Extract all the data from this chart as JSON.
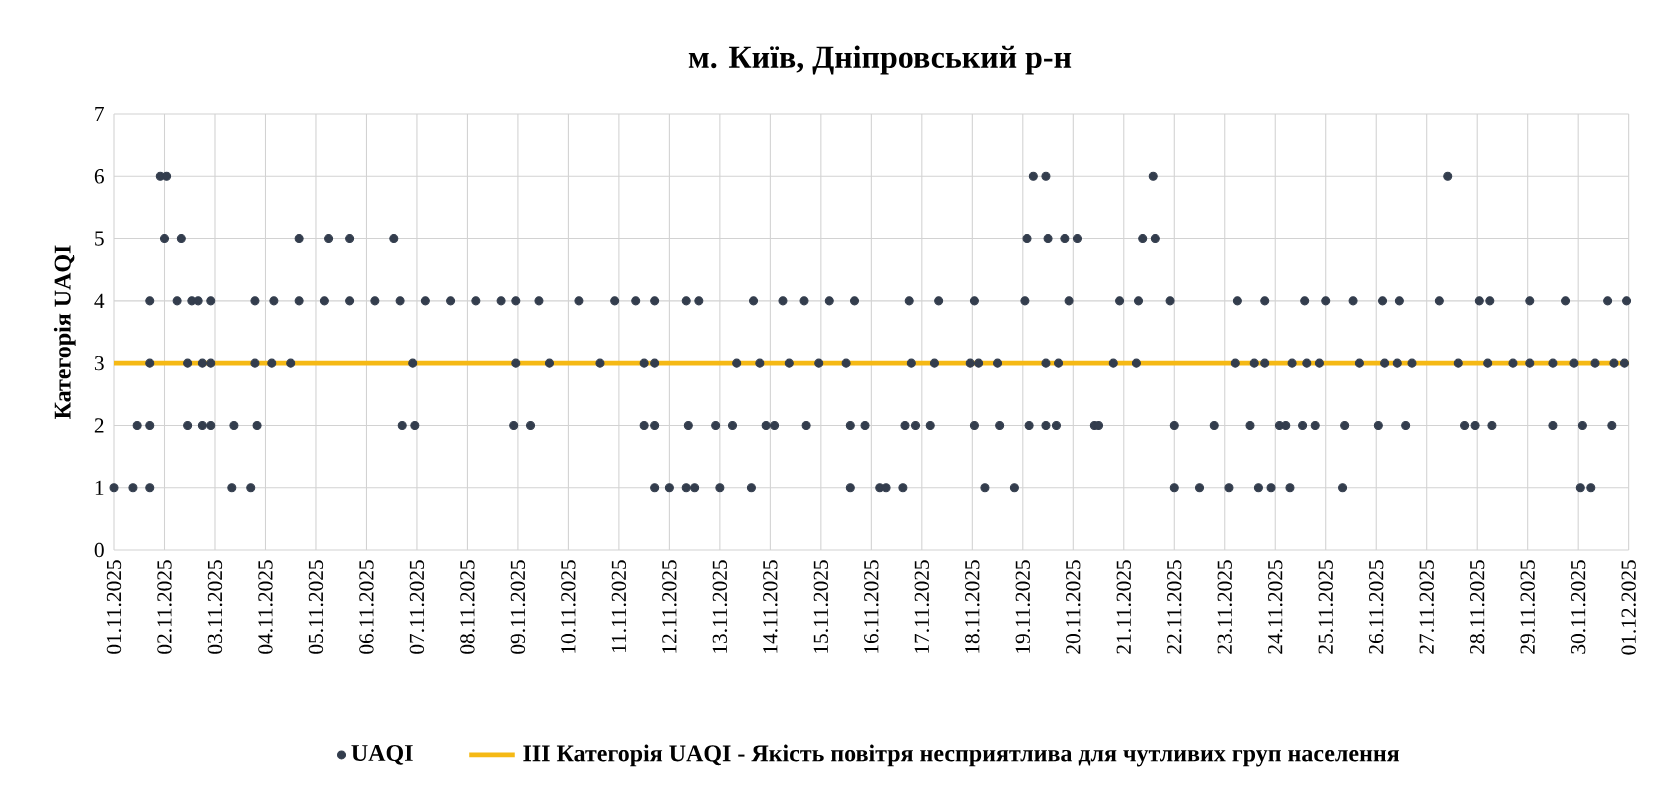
{
  "chart_data": {
    "type": "scatter",
    "title": "м. Київ, Дніпровський р-н",
    "ylabel": "Категорія UAQI",
    "xlim": [
      "2025-11-01",
      "2025-12-01"
    ],
    "xticks": [
      {
        "value": "2025-11-01",
        "label": "01.11.2025"
      },
      {
        "value": "2025-11-02",
        "label": "02.11.2025"
      },
      {
        "value": "2025-11-03",
        "label": "03.11.2025"
      },
      {
        "value": "2025-11-04",
        "label": "04.11.2025"
      },
      {
        "value": "2025-11-05",
        "label": "05.11.2025"
      },
      {
        "value": "2025-11-06",
        "label": "06.11.2025"
      },
      {
        "value": "2025-11-07",
        "label": "07.11.2025"
      },
      {
        "value": "2025-11-08",
        "label": "08.11.2025"
      },
      {
        "value": "2025-11-09",
        "label": "09.11.2025"
      },
      {
        "value": "2025-11-10",
        "label": "10.11.2025"
      },
      {
        "value": "2025-11-11",
        "label": "11.11.2025"
      },
      {
        "value": "2025-11-12",
        "label": "12.11.2025"
      },
      {
        "value": "2025-11-13",
        "label": "13.11.2025"
      },
      {
        "value": "2025-11-14",
        "label": "14.11.2025"
      },
      {
        "value": "2025-11-15",
        "label": "15.11.2025"
      },
      {
        "value": "2025-11-16",
        "label": "16.11.2025"
      },
      {
        "value": "2025-11-17",
        "label": "17.11.2025"
      },
      {
        "value": "2025-11-18",
        "label": "18.11.2025"
      },
      {
        "value": "2025-11-19",
        "label": "19.11.2025"
      },
      {
        "value": "2025-11-20",
        "label": "20.11.2025"
      },
      {
        "value": "2025-11-21",
        "label": "21.11.2025"
      },
      {
        "value": "2025-11-22",
        "label": "22.11.2025"
      },
      {
        "value": "2025-11-23",
        "label": "23.11.2025"
      },
      {
        "value": "2025-11-24",
        "label": "24.11.2025"
      },
      {
        "value": "2025-11-25",
        "label": "25.11.2025"
      },
      {
        "value": "2025-11-26",
        "label": "26.11.2025"
      },
      {
        "value": "2025-11-27",
        "label": "27.11.2025"
      },
      {
        "value": "2025-11-28",
        "label": "28.11.2025"
      },
      {
        "value": "2025-11-29",
        "label": "29.11.2025"
      },
      {
        "value": "2025-11-30",
        "label": "30.11.2025"
      },
      {
        "value": "2025-12-01",
        "label": "01.12.2025"
      }
    ],
    "ylim": [
      0,
      7
    ],
    "yticks": [
      0,
      1,
      2,
      3,
      4,
      5,
      6,
      7
    ],
    "grid": true,
    "legend": "bottom",
    "marker": "circle",
    "ref_lines": [
      {
        "axis": "y",
        "value": 3,
        "label": "III Категорія UAQI - Якість повітря несприятлива для чутливих груп населення",
        "color": "#f5b915"
      }
    ],
    "series": [
      {
        "name": "UAQI",
        "color": "#333d4d",
        "x": [
          "2025-11-01T00:00",
          "2025-11-01T09:00",
          "2025-11-01T17:00",
          "2025-11-03T08:00",
          "2025-11-03T17:00",
          "2025-11-11T17:00",
          "2025-11-12T00:00",
          "2025-11-12T08:00",
          "2025-11-12T12:00",
          "2025-11-13T00:00",
          "2025-11-13T15:00",
          "2025-11-15T14:00",
          "2025-11-16T04:00",
          "2025-11-16T07:00",
          "2025-11-16T15:00",
          "2025-11-18T06:00",
          "2025-11-18T20:00",
          "2025-11-22T00:00",
          "2025-11-22T12:00",
          "2025-11-23T02:00",
          "2025-11-23T16:00",
          "2025-11-23T22:00",
          "2025-11-24T07:00",
          "2025-11-25T08:00",
          "2025-11-30T01:00",
          "2025-11-30T06:00",
          "2025-11-01T11:00",
          "2025-11-01T17:00",
          "2025-11-02T11:00",
          "2025-11-02T18:00",
          "2025-11-02T22:00",
          "2025-11-03T09:00",
          "2025-11-03T20:00",
          "2025-11-06T17:00",
          "2025-11-06T23:00",
          "2025-11-08T22:00",
          "2025-11-09T06:00",
          "2025-11-11T12:00",
          "2025-11-11T17:00",
          "2025-11-12T09:00",
          "2025-11-12T22:00",
          "2025-11-13T06:00",
          "2025-11-13T22:00",
          "2025-11-14T02:00",
          "2025-11-14T17:00",
          "2025-11-15T14:00",
          "2025-11-15T21:00",
          "2025-11-16T16:00",
          "2025-11-16T21:00",
          "2025-11-17T04:00",
          "2025-11-18T01:00",
          "2025-11-18T13:00",
          "2025-11-19T03:00",
          "2025-11-19T11:00",
          "2025-11-19T16:00",
          "2025-11-20T10:00",
          "2025-11-20T12:00",
          "2025-11-22T00:00",
          "2025-11-22T19:00",
          "2025-11-23T12:00",
          "2025-11-24T02:00",
          "2025-11-24T05:00",
          "2025-11-24T13:00",
          "2025-11-24T19:00",
          "2025-11-25T09:00",
          "2025-11-26T01:00",
          "2025-11-26T14:00",
          "2025-11-27T18:00",
          "2025-11-27T23:00",
          "2025-11-28T07:00",
          "2025-11-29T12:00",
          "2025-11-30T02:00",
          "2025-11-30T16:00",
          "2025-11-01T17:00",
          "2025-11-02T11:00",
          "2025-11-02T18:00",
          "2025-11-02T22:00",
          "2025-11-03T19:00",
          "2025-11-04T03:00",
          "2025-11-04T12:00",
          "2025-11-06T22:00",
          "2025-11-08T23:00",
          "2025-11-09T15:00",
          "2025-11-10T15:00",
          "2025-11-11T12:00",
          "2025-11-11T17:00",
          "2025-11-13T08:00",
          "2025-11-13T19:00",
          "2025-11-14T09:00",
          "2025-11-14T23:00",
          "2025-11-15T12:00",
          "2025-11-16T19:00",
          "2025-11-17T06:00",
          "2025-11-17T23:00",
          "2025-11-18T03:00",
          "2025-11-18T12:00",
          "2025-11-19T11:00",
          "2025-11-19T17:00",
          "2025-11-20T19:00",
          "2025-11-21T06:00",
          "2025-11-23T05:00",
          "2025-11-23T14:00",
          "2025-11-23T19:00",
          "2025-11-24T08:00",
          "2025-11-24T15:00",
          "2025-11-24T21:00",
          "2025-11-25T16:00",
          "2025-11-26T04:00",
          "2025-11-26T10:00",
          "2025-11-26T17:00",
          "2025-11-27T15:00",
          "2025-11-28T05:00",
          "2025-11-28T17:00",
          "2025-11-29T01:00",
          "2025-11-29T12:00",
          "2025-11-29T22:00",
          "2025-11-30T08:00",
          "2025-11-30T17:00",
          "2025-11-30T22:00",
          "2025-11-01T17:00",
          "2025-11-02T06:00",
          "2025-11-02T13:00",
          "2025-11-02T16:00",
          "2025-11-02T22:00",
          "2025-11-03T19:00",
          "2025-11-04T04:00",
          "2025-11-04T16:00",
          "2025-11-05T04:00",
          "2025-11-05T16:00",
          "2025-11-06T04:00",
          "2025-11-06T16:00",
          "2025-11-07T04:00",
          "2025-11-07T16:00",
          "2025-11-08T04:00",
          "2025-11-08T16:00",
          "2025-11-08T23:00",
          "2025-11-09T10:00",
          "2025-11-10T05:00",
          "2025-11-10T22:00",
          "2025-11-11T08:00",
          "2025-11-11T17:00",
          "2025-11-12T08:00",
          "2025-11-12T14:00",
          "2025-11-13T16:00",
          "2025-11-14T06:00",
          "2025-11-14T16:00",
          "2025-11-15T04:00",
          "2025-11-15T16:00",
          "2025-11-16T18:00",
          "2025-11-17T08:00",
          "2025-11-18T01:00",
          "2025-11-19T01:00",
          "2025-11-19T22:00",
          "2025-11-20T22:00",
          "2025-11-21T07:00",
          "2025-11-21T22:00",
          "2025-11-23T06:00",
          "2025-11-23T19:00",
          "2025-11-24T14:00",
          "2025-11-25T00:00",
          "2025-11-25T13:00",
          "2025-11-26T03:00",
          "2025-11-26T11:00",
          "2025-11-27T06:00",
          "2025-11-28T01:00",
          "2025-11-28T06:00",
          "2025-11-29T01:00",
          "2025-11-29T18:00",
          "2025-11-30T14:00",
          "2025-11-30T23:00",
          "2025-11-02T00:00",
          "2025-11-02T08:00",
          "2025-11-04T16:00",
          "2025-11-05T06:00",
          "2025-11-05T16:00",
          "2025-11-06T13:00",
          "2025-11-19T02:00",
          "2025-11-19T12:00",
          "2025-11-19T20:00",
          "2025-11-20T02:00",
          "2025-11-21T09:00",
          "2025-11-21T15:00",
          "2025-11-01T22:00",
          "2025-11-02T01:00",
          "2025-11-19T05:00",
          "2025-11-19T11:00",
          "2025-11-21T14:00",
          "2025-11-27T10:00"
        ],
        "values": [
          1,
          1,
          1,
          1,
          1,
          1,
          1,
          1,
          1,
          1,
          1,
          1,
          1,
          1,
          1,
          1,
          1,
          1,
          1,
          1,
          1,
          1,
          1,
          1,
          1,
          1,
          2,
          2,
          2,
          2,
          2,
          2,
          2,
          2,
          2,
          2,
          2,
          2,
          2,
          2,
          2,
          2,
          2,
          2,
          2,
          2,
          2,
          2,
          2,
          2,
          2,
          2,
          2,
          2,
          2,
          2,
          2,
          2,
          2,
          2,
          2,
          2,
          2,
          2,
          2,
          2,
          2,
          2,
          2,
          2,
          2,
          2,
          2,
          3,
          3,
          3,
          3,
          3,
          3,
          3,
          3,
          3,
          3,
          3,
          3,
          3,
          3,
          3,
          3,
          3,
          3,
          3,
          3,
          3,
          3,
          3,
          3,
          3,
          3,
          3,
          3,
          3,
          3,
          3,
          3,
          3,
          3,
          3,
          3,
          3,
          3,
          3,
          3,
          3,
          3,
          3,
          3,
          3,
          3,
          4,
          4,
          4,
          4,
          4,
          4,
          4,
          4,
          4,
          4,
          4,
          4,
          4,
          4,
          4,
          4,
          4,
          4,
          4,
          4,
          4,
          4,
          4,
          4,
          4,
          4,
          4,
          4,
          4,
          4,
          4,
          4,
          4,
          4,
          4,
          4,
          4,
          4,
          4,
          4,
          4,
          4,
          4,
          4,
          4,
          4,
          4,
          4,
          4,
          4,
          4,
          5,
          5,
          5,
          5,
          5,
          5,
          5,
          5,
          5,
          5,
          5,
          5,
          6,
          6,
          6,
          6,
          6,
          6
        ]
      }
    ]
  }
}
